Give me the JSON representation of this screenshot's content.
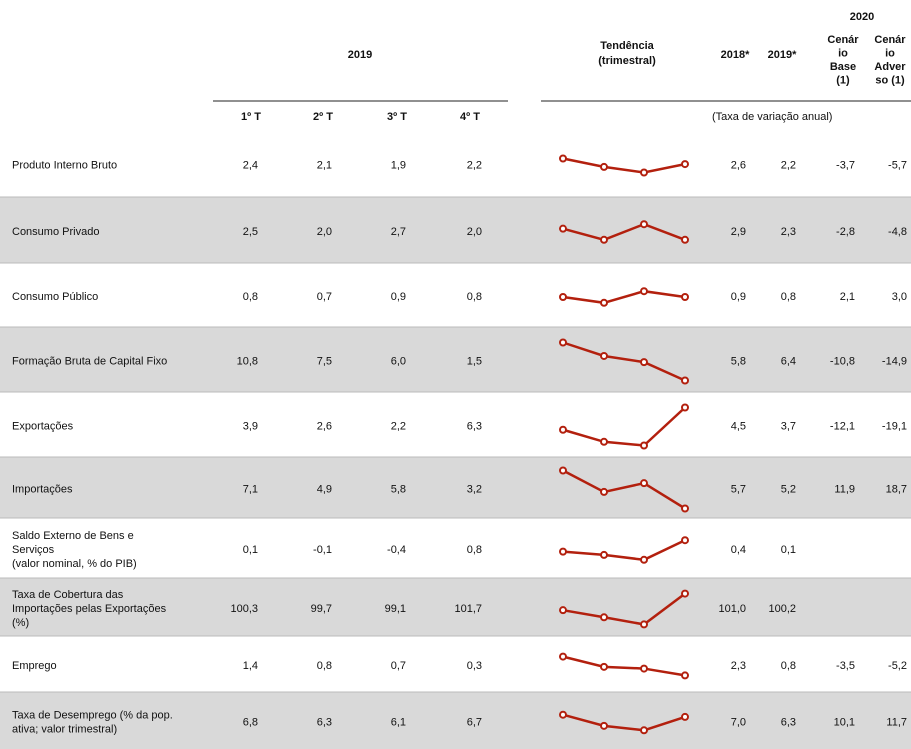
{
  "header": {
    "year_2020": "2020",
    "year_2019": "2019",
    "trend": [
      "Tendência",
      "(trimestral)"
    ],
    "col_2018": "2018*",
    "col_2019": "2019*",
    "base": [
      "Cenár",
      "io",
      "Base",
      "(1)"
    ],
    "adverse": [
      "Cenár",
      "io",
      "Adver",
      "so (1)"
    ],
    "quarters": [
      "1º T",
      "2º T",
      "3º T",
      "4º T"
    ],
    "unit_note": "(Taxa de variação anual)"
  },
  "rows": [
    {
      "label": [
        "Produto Interno Bruto"
      ],
      "quarters": [
        2.4,
        2.1,
        1.9,
        2.2
      ],
      "quarter_labels": [
        "2,4",
        "2,1",
        "1,9",
        "2,2"
      ],
      "annual": [
        "2,6",
        "2,2",
        "-3,7",
        "-5,7"
      ]
    },
    {
      "label": [
        "Consumo Privado"
      ],
      "quarters": [
        2.5,
        2.0,
        2.7,
        2.0
      ],
      "quarter_labels": [
        "2,5",
        "2,0",
        "2,7",
        "2,0"
      ],
      "annual": [
        "2,9",
        "2,3",
        "-2,8",
        "-4,8"
      ]
    },
    {
      "label": [
        "Consumo Público"
      ],
      "quarters": [
        0.8,
        0.7,
        0.9,
        0.8
      ],
      "quarter_labels": [
        "0,8",
        "0,7",
        "0,9",
        "0,8"
      ],
      "annual": [
        "0,9",
        "0,8",
        "2,1",
        "3,0"
      ]
    },
    {
      "label": [
        "Formação Bruta de Capital Fixo"
      ],
      "quarters": [
        10.8,
        7.5,
        6.0,
        1.5
      ],
      "quarter_labels": [
        "10,8",
        "7,5",
        "6,0",
        "1,5"
      ],
      "annual": [
        "5,8",
        "6,4",
        "-10,8",
        "-14,9"
      ]
    },
    {
      "label": [
        "Exportações"
      ],
      "quarters": [
        3.9,
        2.6,
        2.2,
        6.3
      ],
      "quarter_labels": [
        "3,9",
        "2,6",
        "2,2",
        "6,3"
      ],
      "annual": [
        "4,5",
        "3,7",
        "-12,1",
        "-19,1"
      ]
    },
    {
      "label": [
        "Importações"
      ],
      "quarters": [
        7.1,
        4.9,
        5.8,
        3.2
      ],
      "quarter_labels": [
        "7,1",
        "4,9",
        "5,8",
        "3,2"
      ],
      "annual": [
        "5,7",
        "5,2",
        "11,9",
        "18,7"
      ]
    },
    {
      "label": [
        "Saldo Externo de Bens e",
        "Serviços",
        "(valor nominal, % do PIB)"
      ],
      "quarters": [
        0.1,
        -0.1,
        -0.4,
        0.8
      ],
      "quarter_labels": [
        "0,1",
        "-0,1",
        "-0,4",
        "0,8"
      ],
      "annual": [
        "0,4",
        "0,1"
      ]
    },
    {
      "label": [
        "Taxa de Cobertura das",
        "Importações pelas Exportações",
        "(%)"
      ],
      "quarters": [
        100.3,
        99.7,
        99.1,
        101.7
      ],
      "quarter_labels": [
        "100,3",
        "99,7",
        "99,1",
        "101,7"
      ],
      "annual": [
        "101,0",
        "100,2"
      ]
    },
    {
      "label": [
        "Emprego"
      ],
      "quarters": [
        1.4,
        0.8,
        0.7,
        0.3
      ],
      "quarter_labels": [
        "1,4",
        "0,8",
        "0,7",
        "0,3"
      ],
      "annual": [
        "2,3",
        "0,8",
        "-3,5",
        "-5,2"
      ]
    },
    {
      "label": [
        "Taxa de Desemprego (% da pop.",
        "ativa; valor trimestral)"
      ],
      "quarters": [
        6.8,
        6.3,
        6.1,
        6.7
      ],
      "quarter_labels": [
        "6,8",
        "6,3",
        "6,1",
        "6,7"
      ],
      "annual": [
        "7,0",
        "6,3",
        "10,1",
        "11,7"
      ]
    }
  ]
}
